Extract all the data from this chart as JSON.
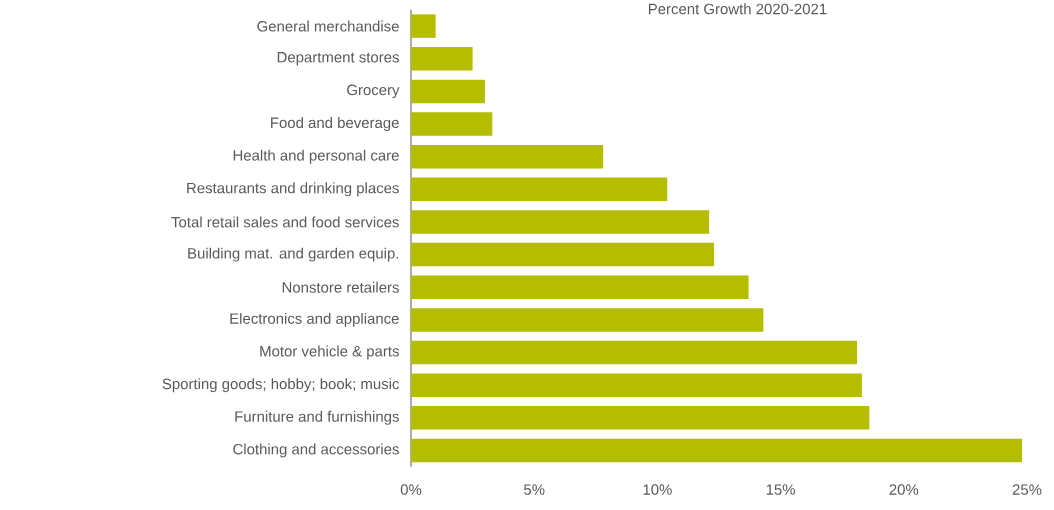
{
  "chart_data": {
    "type": "bar",
    "orientation": "horizontal",
    "title": "Percent Growth 2020-2021",
    "categories": [
      "General merchandise",
      "Department stores",
      "Grocery",
      "Food and beverage",
      "Health and personal care",
      "Restaurants and drinking places",
      "Total retail sales and food services",
      "Building mat. and garden equip.",
      "Nonstore retailers",
      "Electronics and appliance",
      "Motor vehicle & parts",
      "Sporting goods; hobby; book; music",
      "Furniture and furnishings",
      "Clothing and accessories"
    ],
    "values": [
      1.0,
      2.5,
      3.0,
      3.3,
      7.8,
      10.4,
      12.1,
      12.3,
      13.7,
      14.3,
      18.1,
      18.3,
      18.6,
      24.8
    ],
    "color": "#b5bd00",
    "xlim": [
      0,
      25
    ],
    "xticks": [
      {
        "value": 0,
        "label": "0%"
      },
      {
        "value": 5,
        "label": "5%"
      },
      {
        "value": 10,
        "label": "10%"
      },
      {
        "value": 15,
        "label": "15%"
      },
      {
        "value": 20,
        "label": "20%"
      },
      {
        "value": 25,
        "label": "25%"
      }
    ],
    "grid": false
  }
}
